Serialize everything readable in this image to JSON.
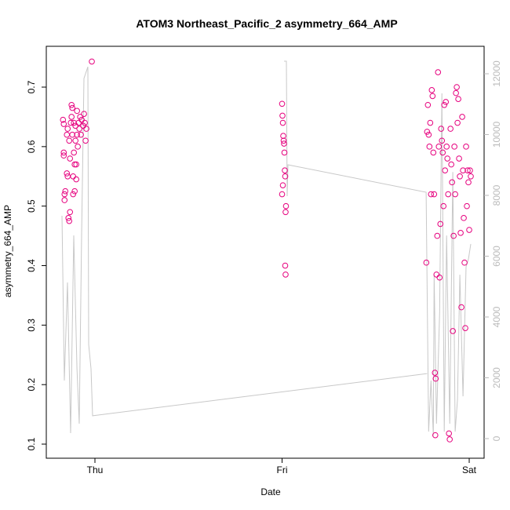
{
  "chart_data": {
    "type": "scatter",
    "title": "ATOM3 Northeast_Pacific_2 asymmetry_664_AMP",
    "x_label": "Date",
    "y_label": "asymmetry_664_AMP",
    "xlim": [
      -6.24,
      49.91
    ],
    "ylim": [
      0.0763,
      0.7686
    ],
    "y2lim": [
      -645,
      12903
    ],
    "xticks": [
      {
        "value": 0,
        "label": "Thu"
      },
      {
        "value": 24,
        "label": "Fri"
      },
      {
        "value": 48,
        "label": "Sat"
      }
    ],
    "yticks": [
      0.1,
      0.2,
      0.3,
      0.4,
      0.5,
      0.6,
      0.7
    ],
    "y2ticks": [
      0,
      2000,
      4000,
      6000,
      8000,
      10000,
      12000
    ],
    "points": {
      "color": "#e6007e",
      "x": [
        -4.1,
        -4.0,
        -4.0,
        -4.0,
        -3.9,
        -3.9,
        -3.8,
        -3.6,
        -3.6,
        -3.5,
        -3.5,
        -3.4,
        -3.3,
        -3.3,
        -3.2,
        -3.2,
        -3.1,
        -3.0,
        -3.0,
        -2.9,
        -2.9,
        -2.8,
        -2.8,
        -2.7,
        -2.7,
        -2.6,
        -2.6,
        -2.5,
        -2.5,
        -2.4,
        -2.4,
        -2.3,
        -2.3,
        -2.2,
        -2.1,
        -2.0,
        -1.9,
        -1.8,
        -1.7,
        -1.5,
        -1.4,
        -1.3,
        -1.2,
        -1.1,
        -0.4,
        24.0,
        24.05,
        24.1,
        24.15,
        24.2,
        24.25,
        24.3,
        24.35,
        24.0,
        24.1,
        24.4,
        24.5,
        24.45,
        24.4,
        24.45,
        42.5,
        42.6,
        42.7,
        42.8,
        42.9,
        43.0,
        43.1,
        43.2,
        43.3,
        43.4,
        43.5,
        43.6,
        43.7,
        43.65,
        43.8,
        43.9,
        44.0,
        44.1,
        44.2,
        44.3,
        44.4,
        44.5,
        44.6,
        44.7,
        44.8,
        44.9,
        45.0,
        45.1,
        45.2,
        45.3,
        45.4,
        45.5,
        45.6,
        45.7,
        45.8,
        45.9,
        46.0,
        46.1,
        46.2,
        46.3,
        46.4,
        46.5,
        46.6,
        46.7,
        46.8,
        46.9,
        47.0,
        47.1,
        47.2,
        47.3,
        47.4,
        47.5,
        47.6,
        47.7,
        47.8,
        47.9,
        48.0,
        48.1,
        48.2
      ],
      "values": [
        0.645,
        0.638,
        0.59,
        0.585,
        0.52,
        0.51,
        0.525,
        0.555,
        0.62,
        0.63,
        0.55,
        0.48,
        0.475,
        0.61,
        0.49,
        0.58,
        0.64,
        0.67,
        0.65,
        0.665,
        0.62,
        0.52,
        0.55,
        0.59,
        0.64,
        0.525,
        0.57,
        0.635,
        0.61,
        0.545,
        0.57,
        0.66,
        0.62,
        0.6,
        0.64,
        0.63,
        0.65,
        0.62,
        0.645,
        0.635,
        0.655,
        0.64,
        0.61,
        0.63,
        0.743,
        0.672,
        0.652,
        0.64,
        0.618,
        0.61,
        0.605,
        0.59,
        0.56,
        0.52,
        0.535,
        0.55,
        0.5,
        0.49,
        0.4,
        0.385,
        0.405,
        0.625,
        0.67,
        0.62,
        0.6,
        0.64,
        0.52,
        0.695,
        0.685,
        0.59,
        0.52,
        0.22,
        0.21,
        0.115,
        0.385,
        0.45,
        0.725,
        0.6,
        0.38,
        0.47,
        0.63,
        0.61,
        0.59,
        0.5,
        0.67,
        0.56,
        0.675,
        0.6,
        0.58,
        0.52,
        0.118,
        0.108,
        0.63,
        0.57,
        0.54,
        0.29,
        0.45,
        0.6,
        0.52,
        0.69,
        0.7,
        0.64,
        0.68,
        0.58,
        0.55,
        0.455,
        0.33,
        0.65,
        0.56,
        0.48,
        0.405,
        0.295,
        0.6,
        0.5,
        0.56,
        0.54,
        0.46,
        0.56,
        0.55
      ]
    },
    "line": {
      "axis": "y2",
      "color": "#c8c8c8",
      "x": [
        -4.23,
        -3.93,
        -3.52,
        -3.12,
        -2.72,
        -2.31,
        -2.01,
        -1.71,
        -1.41,
        -0.91,
        -0.81,
        -0.5,
        -0.3,
        42.6,
        null,
        24.25,
        24.55,
        24.65,
        24.75,
        42.47,
        42.8,
        43.1,
        43.4,
        43.5,
        43.8,
        44.2,
        44.5,
        44.8,
        45.1,
        45.5,
        45.9,
        46.2,
        46.5,
        46.8,
        47.2,
        47.6,
        47.9,
        48.2
      ],
      "values": [
        7330,
        1910,
        5135,
        180,
        6680,
        2300,
        490,
        6680,
        11845,
        12230,
        3100,
        2300,
        750,
        2140,
        null,
        12413,
        12413,
        7974,
        9006,
        8103,
        230,
        1910,
        100,
        5390,
        490,
        4130,
        11355,
        230,
        6680,
        490,
        8770,
        230,
        1290,
        5390,
        1390,
        5650,
        5900,
        6400
      ]
    }
  }
}
